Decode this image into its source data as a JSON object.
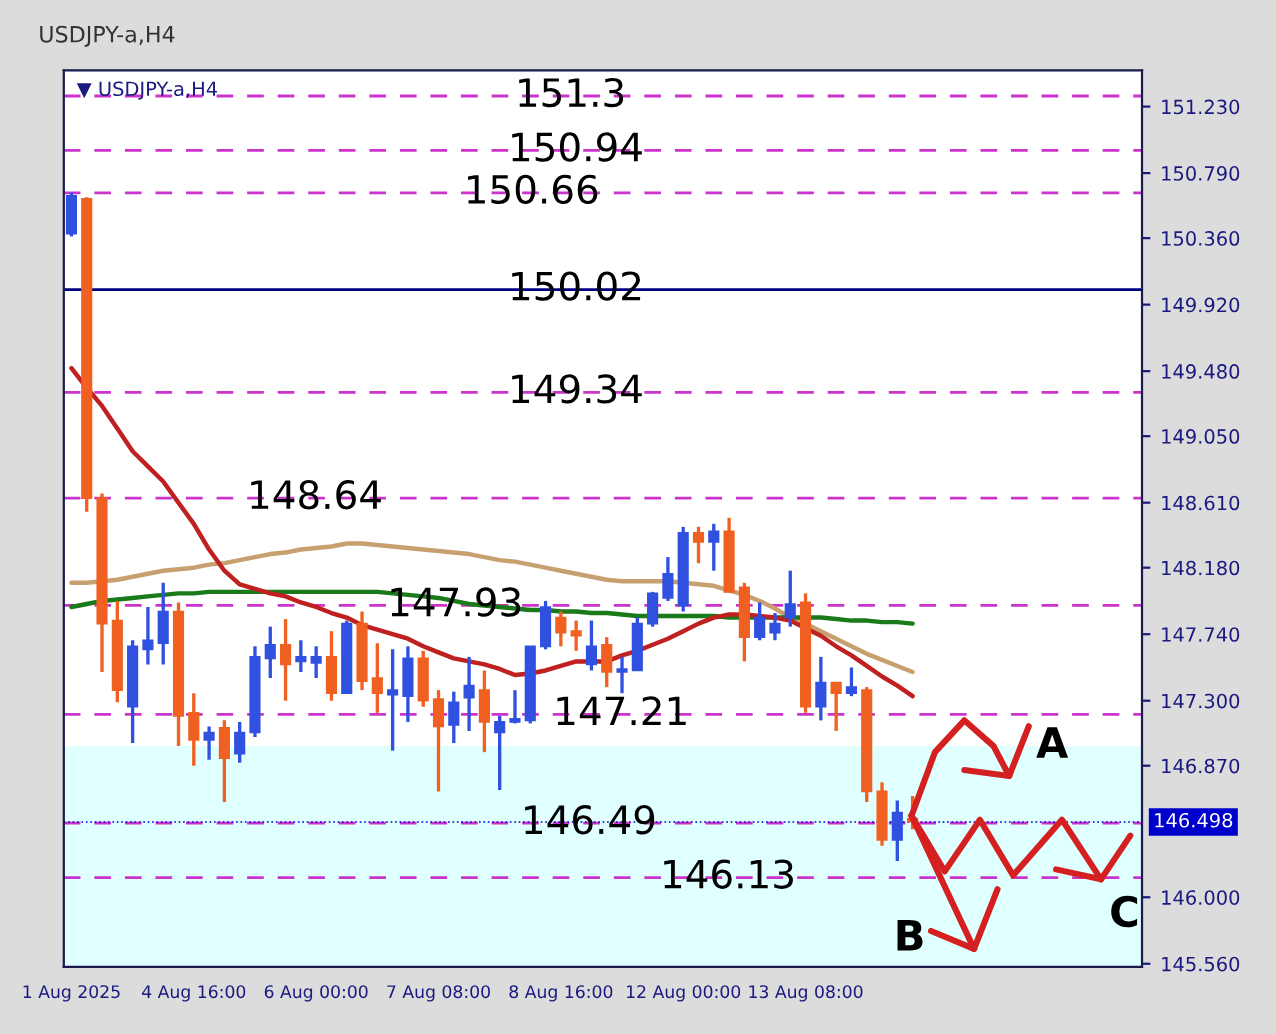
{
  "chart_data": {
    "type": "candlestick",
    "title": "USDJPY-a,H4",
    "subtitle": "▼ USDJPY-a,H4",
    "categories": [
      "1 Aug 2025",
      null,
      null,
      null,
      null,
      null,
      null,
      null,
      "4 Aug 16:00",
      null,
      null,
      null,
      null,
      null,
      null,
      null,
      "6 Aug 00:00",
      null,
      null,
      null,
      null,
      null,
      null,
      null,
      "7 Aug 08:00",
      null,
      null,
      null,
      null,
      null,
      null,
      null,
      "8 Aug 16:00",
      null,
      null,
      null,
      null,
      null,
      null,
      null,
      "12 Aug 00:00",
      null,
      null,
      null,
      null,
      null,
      null,
      null,
      "13 Aug 08:00",
      null,
      null,
      null,
      null,
      null,
      null,
      null
    ],
    "ohlc": [
      [
        150.39,
        150.66,
        150.37,
        150.64
      ],
      [
        150.62,
        150.63,
        148.55,
        148.64
      ],
      [
        148.64,
        148.67,
        147.49,
        147.81
      ],
      [
        147.83,
        147.96,
        147.29,
        147.37
      ],
      [
        147.26,
        147.7,
        147.02,
        147.66
      ],
      [
        147.64,
        147.92,
        147.54,
        147.7
      ],
      [
        147.68,
        148.08,
        147.54,
        147.89
      ],
      [
        147.89,
        147.95,
        147.0,
        147.2
      ],
      [
        147.22,
        147.35,
        146.87,
        147.04
      ],
      [
        147.04,
        147.13,
        146.91,
        147.09
      ],
      [
        147.12,
        147.17,
        146.63,
        146.92
      ],
      [
        146.95,
        147.16,
        146.89,
        147.09
      ],
      [
        147.09,
        147.66,
        147.06,
        147.59
      ],
      [
        147.58,
        147.79,
        147.45,
        147.67
      ],
      [
        147.67,
        147.84,
        147.3,
        147.54
      ],
      [
        147.56,
        147.7,
        147.49,
        147.59
      ],
      [
        147.55,
        147.66,
        147.45,
        147.59
      ],
      [
        147.59,
        147.76,
        147.3,
        147.35
      ],
      [
        147.35,
        147.83,
        147.35,
        147.81
      ],
      [
        147.81,
        147.89,
        147.37,
        147.43
      ],
      [
        147.45,
        147.68,
        147.22,
        147.35
      ],
      [
        147.34,
        147.64,
        146.97,
        147.37
      ],
      [
        147.33,
        147.66,
        147.16,
        147.58
      ],
      [
        147.58,
        147.63,
        147.26,
        147.3
      ],
      [
        147.31,
        147.37,
        146.7,
        147.13
      ],
      [
        147.14,
        147.36,
        147.02,
        147.29
      ],
      [
        147.32,
        147.59,
        147.1,
        147.4
      ],
      [
        147.37,
        147.5,
        146.96,
        147.16
      ],
      [
        147.09,
        147.2,
        146.71,
        147.16
      ],
      [
        147.16,
        147.37,
        147.15,
        147.18
      ],
      [
        147.17,
        147.66,
        147.15,
        147.66
      ],
      [
        147.66,
        147.96,
        147.64,
        147.92
      ],
      [
        147.85,
        147.89,
        147.66,
        147.75
      ],
      [
        147.76,
        147.83,
        147.63,
        147.73
      ],
      [
        147.54,
        147.83,
        147.5,
        147.66
      ],
      [
        147.67,
        147.72,
        147.39,
        147.49
      ],
      [
        147.49,
        147.59,
        147.35,
        147.51
      ],
      [
        147.5,
        147.85,
        147.5,
        147.81
      ],
      [
        147.81,
        148.02,
        147.79,
        148.01
      ],
      [
        147.98,
        148.25,
        147.96,
        148.14
      ],
      [
        147.93,
        148.45,
        147.89,
        148.41
      ],
      [
        148.41,
        148.45,
        148.21,
        148.35
      ],
      [
        148.35,
        148.47,
        148.16,
        148.42
      ],
      [
        148.42,
        148.51,
        148.02,
        148.02
      ],
      [
        148.05,
        148.08,
        147.56,
        147.72
      ],
      [
        147.72,
        147.95,
        147.7,
        147.85
      ],
      [
        147.75,
        147.88,
        147.7,
        147.81
      ],
      [
        147.85,
        148.16,
        147.79,
        147.94
      ],
      [
        147.95,
        148.01,
        147.22,
        147.26
      ],
      [
        147.26,
        147.59,
        147.17,
        147.42
      ],
      [
        147.42,
        147.42,
        147.1,
        147.35
      ],
      [
        147.35,
        147.52,
        147.33,
        147.39
      ],
      [
        147.37,
        147.39,
        146.63,
        146.7
      ],
      [
        146.7,
        146.76,
        146.34,
        146.38
      ],
      [
        146.38,
        146.64,
        146.24,
        146.56
      ],
      [
        146.52,
        146.67,
        146.45,
        146.5
      ]
    ],
    "colors": [
      "#3050e0",
      "#f06020",
      "#f06020",
      "#f06020",
      "#3050e0",
      "#3050e0",
      "#3050e0",
      "#f06020",
      "#f06020",
      "#3050e0",
      "#f06020",
      "#3050e0",
      "#3050e0",
      "#3050e0",
      "#f06020",
      "#3050e0",
      "#3050e0",
      "#f06020",
      "#3050e0",
      "#f06020",
      "#f06020",
      "#3050e0",
      "#3050e0",
      "#f06020",
      "#f06020",
      "#3050e0",
      "#3050e0",
      "#f06020",
      "#3050e0",
      "#3050e0",
      "#3050e0",
      "#3050e0",
      "#f06020",
      "#f06020",
      "#3050e0",
      "#f06020",
      "#3050e0",
      "#3050e0",
      "#3050e0",
      "#3050e0",
      "#3050e0",
      "#f06020",
      "#3050e0",
      "#f06020",
      "#f06020",
      "#3050e0",
      "#3050e0",
      "#3050e0",
      "#f06020",
      "#3050e0",
      "#f06020",
      "#3050e0",
      "#f06020",
      "#f06020",
      "#3050e0",
      "#f06020"
    ],
    "series": [
      {
        "type": "line",
        "color": "#c8a070",
        "values": [
          148.08,
          148.08,
          148.09,
          148.1,
          148.12,
          148.14,
          148.16,
          148.17,
          148.18,
          148.2,
          148.21,
          148.23,
          148.25,
          148.27,
          148.28,
          148.3,
          148.31,
          148.32,
          148.34,
          148.34,
          148.33,
          148.32,
          148.31,
          148.3,
          148.29,
          148.28,
          148.27,
          148.25,
          148.23,
          148.22,
          148.2,
          148.18,
          148.16,
          148.14,
          148.12,
          148.1,
          148.09,
          148.09,
          148.09,
          148.09,
          148.08,
          148.07,
          148.06,
          148.03,
          148.0,
          147.96,
          147.91,
          147.85,
          147.81,
          147.76,
          147.71,
          147.66,
          147.61,
          147.57,
          147.53,
          147.49
        ]
      },
      {
        "type": "line",
        "color": "#1a7a1a",
        "values": [
          147.92,
          147.94,
          147.96,
          147.97,
          147.98,
          147.99,
          148.0,
          148.01,
          148.01,
          148.02,
          148.02,
          148.02,
          148.02,
          148.02,
          148.02,
          148.02,
          148.02,
          148.02,
          148.02,
          148.02,
          148.02,
          148.01,
          148.0,
          147.99,
          147.98,
          147.96,
          147.94,
          147.93,
          147.92,
          147.91,
          147.9,
          147.9,
          147.89,
          147.89,
          147.88,
          147.88,
          147.87,
          147.86,
          147.86,
          147.86,
          147.86,
          147.86,
          147.86,
          147.85,
          147.85,
          147.85,
          147.85,
          147.85,
          147.85,
          147.85,
          147.84,
          147.83,
          147.83,
          147.82,
          147.82,
          147.81
        ]
      },
      {
        "type": "line",
        "color": "#c02020",
        "values": [
          149.5,
          149.37,
          149.25,
          149.1,
          148.95,
          148.85,
          148.75,
          148.61,
          148.47,
          148.3,
          148.16,
          148.07,
          148.04,
          148.01,
          147.99,
          147.95,
          147.92,
          147.88,
          147.85,
          147.8,
          147.77,
          147.74,
          147.71,
          147.66,
          147.62,
          147.58,
          147.56,
          147.54,
          147.51,
          147.47,
          147.48,
          147.5,
          147.53,
          147.56,
          147.56,
          147.56,
          147.6,
          147.63,
          147.67,
          147.71,
          147.76,
          147.81,
          147.85,
          147.87,
          147.87,
          147.86,
          147.85,
          147.83,
          147.78,
          147.73,
          147.66,
          147.6,
          147.53,
          147.46,
          147.4,
          147.33
        ]
      }
    ],
    "ylim": [
      145.54,
      151.47
    ],
    "yticks": [
      {
        "value": 151.23,
        "label": "151.230"
      },
      {
        "value": 150.79,
        "label": "150.790"
      },
      {
        "value": 150.36,
        "label": "150.360"
      },
      {
        "value": 149.92,
        "label": "149.920"
      },
      {
        "value": 149.48,
        "label": "149.480"
      },
      {
        "value": 149.05,
        "label": "149.050"
      },
      {
        "value": 148.61,
        "label": "148.610"
      },
      {
        "value": 148.18,
        "label": "148.180"
      },
      {
        "value": 147.74,
        "label": "147.740"
      },
      {
        "value": 147.3,
        "label": "147.300"
      },
      {
        "value": 146.87,
        "label": "146.870"
      },
      {
        "value": 146.0,
        "label": "146.000"
      },
      {
        "value": 145.56,
        "label": "145.560"
      }
    ],
    "ref_lines": [
      {
        "axis": "y",
        "value": 151.3,
        "label": "151.3",
        "color": "#cc33cc",
        "line_style": "dashed"
      },
      {
        "axis": "y",
        "value": 150.94,
        "label": "150.94",
        "color": "#cc33cc",
        "line_style": "dashed"
      },
      {
        "axis": "y",
        "value": 150.66,
        "label": "150.66",
        "color": "#cc33cc",
        "line_style": "dashed"
      },
      {
        "axis": "y",
        "value": 150.02,
        "label": "150.02",
        "color": "#000080",
        "line_style": "solid"
      },
      {
        "axis": "y",
        "value": 149.34,
        "label": "149.34",
        "color": "#cc33cc",
        "line_style": "dashed"
      },
      {
        "axis": "y",
        "value": 148.64,
        "label": "148.64",
        "color": "#cc33cc",
        "line_style": "dashed"
      },
      {
        "axis": "y",
        "value": 147.93,
        "label": "147.93",
        "color": "#cc33cc",
        "line_style": "dashed"
      },
      {
        "axis": "y",
        "value": 147.21,
        "label": "147.21",
        "color": "#cc33cc",
        "line_style": "dashed"
      },
      {
        "axis": "y",
        "value": 146.49,
        "label": "146.49",
        "color": "#cc33cc",
        "line_style": "dashed"
      },
      {
        "axis": "y",
        "value": 146.13,
        "label": "146.13",
        "color": "#cc33cc",
        "line_style": "dashed"
      },
      {
        "axis": "y",
        "value": 146.498,
        "label": "146.498",
        "color": "#0000cc",
        "line_style": "dotted"
      }
    ],
    "bands": [
      {
        "axis": "y",
        "from": 145.54,
        "to": 147.0,
        "color": "#e0ffff"
      }
    ],
    "annotations": [
      "A",
      "B",
      "C"
    ],
    "grid": false
  }
}
